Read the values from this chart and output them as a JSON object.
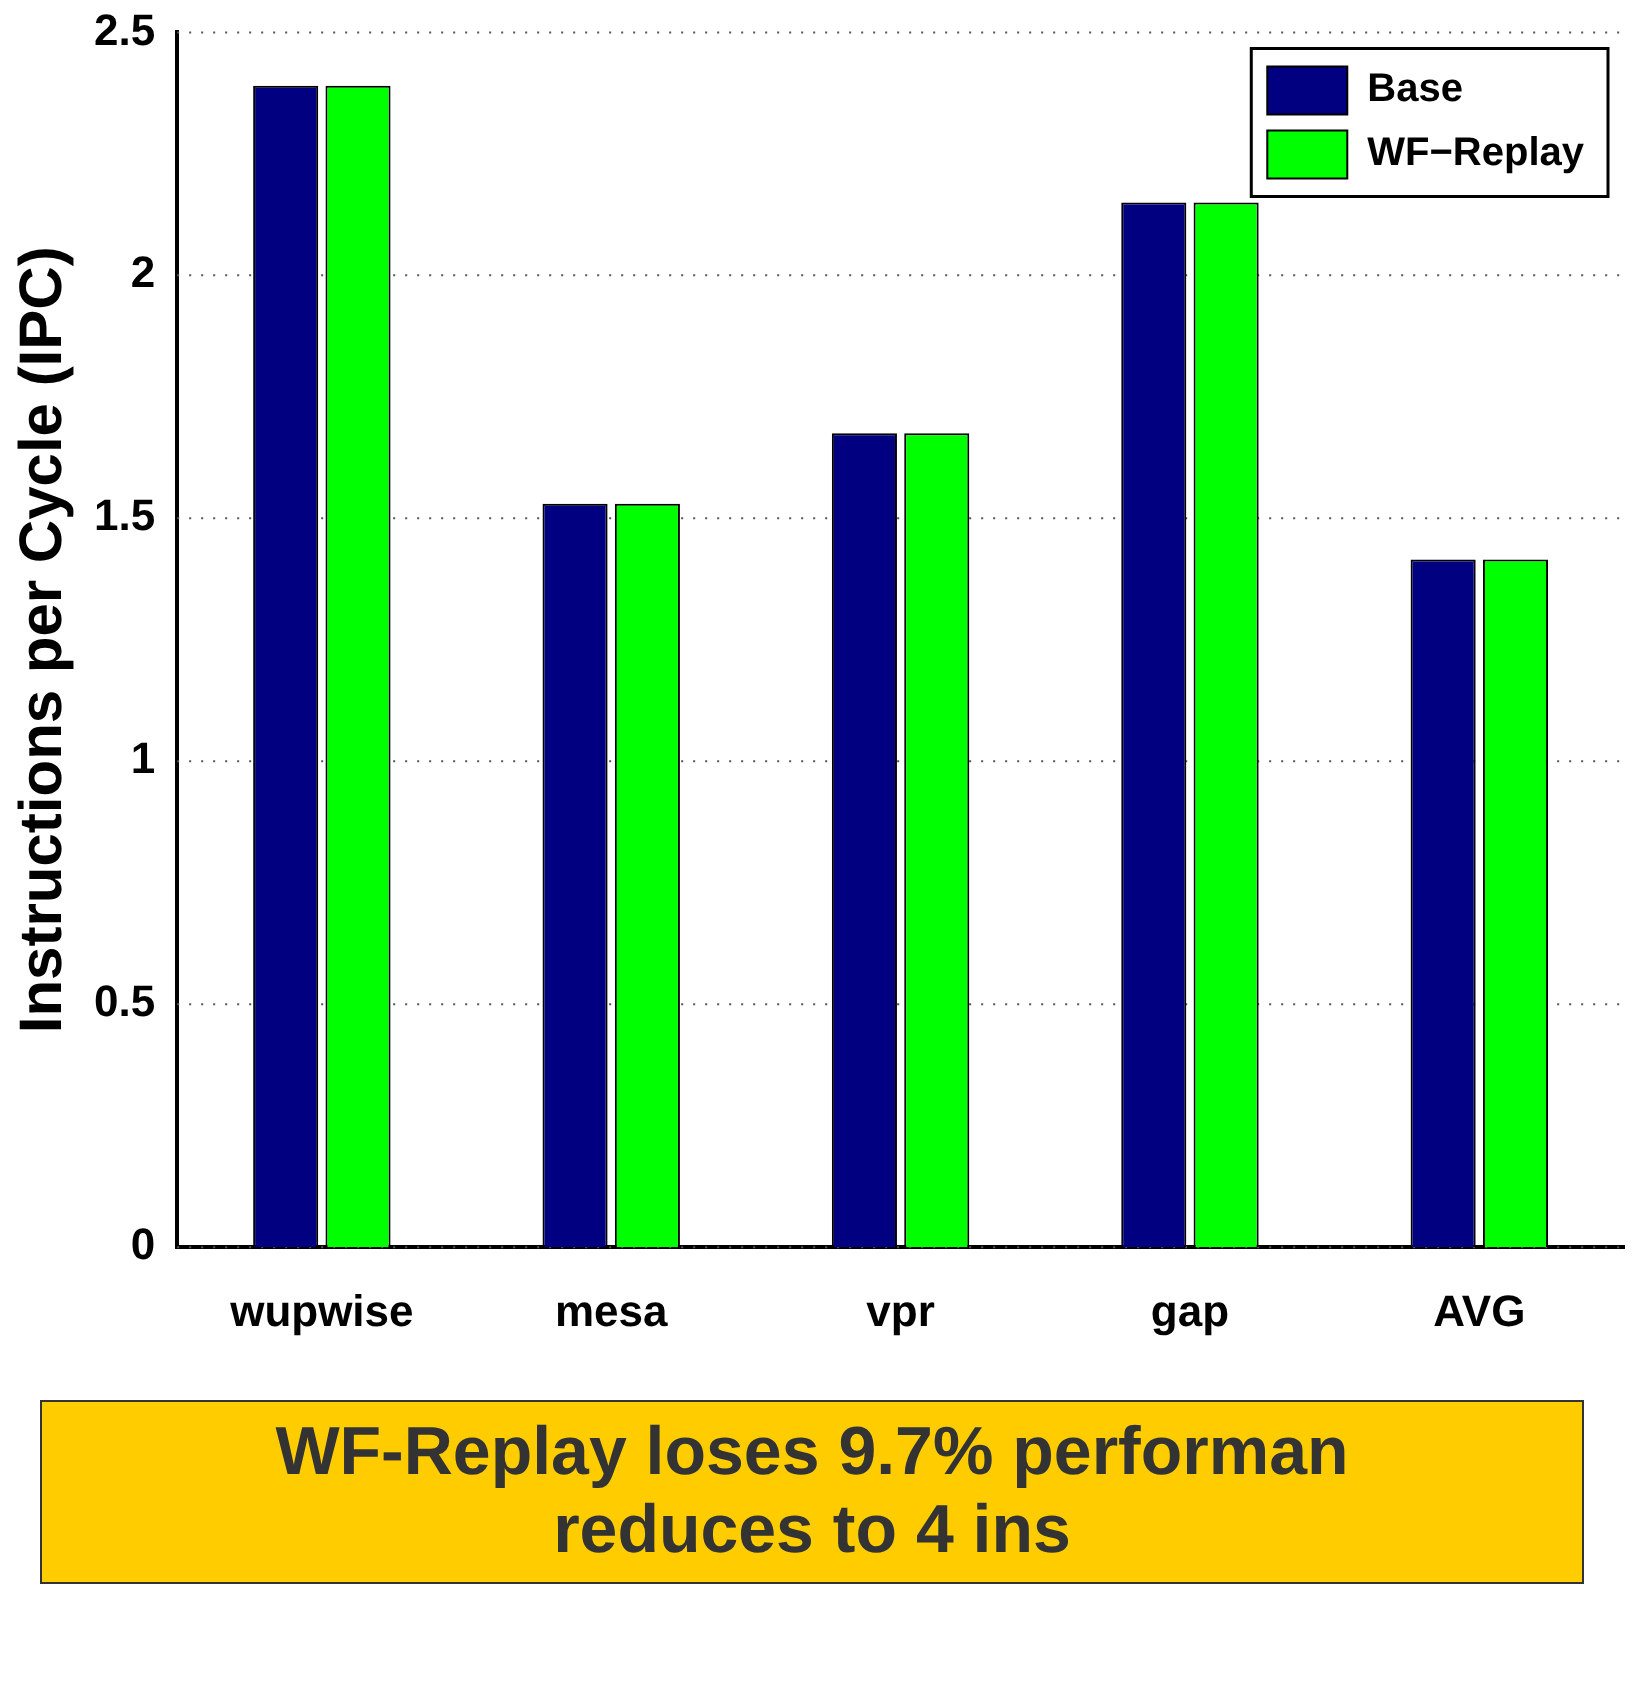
{
  "chart_data": {
    "type": "bar",
    "ylabel": "Instructions per Cycle (IPC)",
    "categories": [
      "wupwise",
      "mesa",
      "vpr",
      "gap",
      "AVG"
    ],
    "series": [
      {
        "name": "Base",
        "color": "#000080",
        "values": [
          2.39,
          1.53,
          1.675,
          2.15,
          1.415
        ]
      },
      {
        "name": "WF−Replay",
        "color": "#00ff00",
        "values": [
          2.39,
          1.53,
          1.675,
          2.15,
          1.415
        ]
      }
    ],
    "ylim": [
      0,
      2.5
    ],
    "yticks": [
      0,
      0.5,
      1,
      1.5,
      2,
      2.5
    ],
    "grid": "y",
    "legend": "top right",
    "annotations": [
      "WF-Replay loses 9.7% performan",
      "reduces to 4 ins"
    ]
  }
}
